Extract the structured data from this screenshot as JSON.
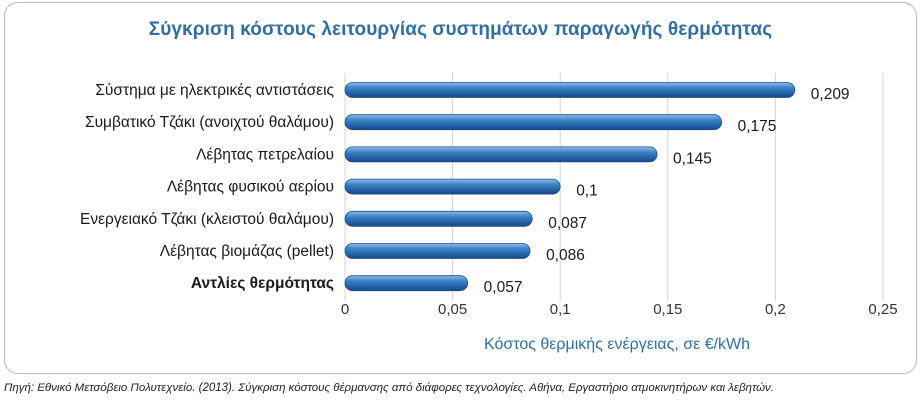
{
  "chart_data": {
    "type": "bar",
    "orientation": "horizontal",
    "title": "Σύγκριση κόστους λειτουργίας συστημάτων παραγωγής θερμότητας",
    "categories": [
      "Σύστημα με ηλεκτρικές αντιστάσεις",
      "Συμβατικό Τζάκι (ανοιχτού θαλάμου)",
      "Λέβητας πετρελαίου",
      "Λέβητας φυσικού αερίου",
      "Ενεργειακό Τζάκι (κλειστού θαλάμου)",
      "Λέβητας βιομάζας (pellet)",
      "Αντλίες θερμότητας"
    ],
    "values": [
      0.209,
      0.175,
      0.145,
      0.1,
      0.087,
      0.086,
      0.057
    ],
    "value_labels": [
      "0,209",
      "0,175",
      "0,145",
      "0,1",
      "0,087",
      "0,086",
      "0,057"
    ],
    "highlighted_category": "Αντλίες θερμότητας",
    "xlabel": "Κόστος θερμικής ενέργειας, σε €/kWh",
    "xlim": [
      0,
      0.25
    ],
    "xticks": [
      0,
      0.05,
      0.1,
      0.15,
      0.2,
      0.25
    ],
    "xtick_labels": [
      "0",
      "0,05",
      "0,1",
      "0,15",
      "0,2",
      "0,25"
    ],
    "grid": "vertical",
    "bar_color": "#2f6fb0"
  },
  "source_note": "Πηγή: Εθνικό Μετσόβειο Πολυτεχνείο. (2013). Σύγκριση κόστους θέρμανσης από διάφορες τεχνολογίες. Αθήνα, Εργαστήριο ατμοκινητήρων και λεβητών."
}
